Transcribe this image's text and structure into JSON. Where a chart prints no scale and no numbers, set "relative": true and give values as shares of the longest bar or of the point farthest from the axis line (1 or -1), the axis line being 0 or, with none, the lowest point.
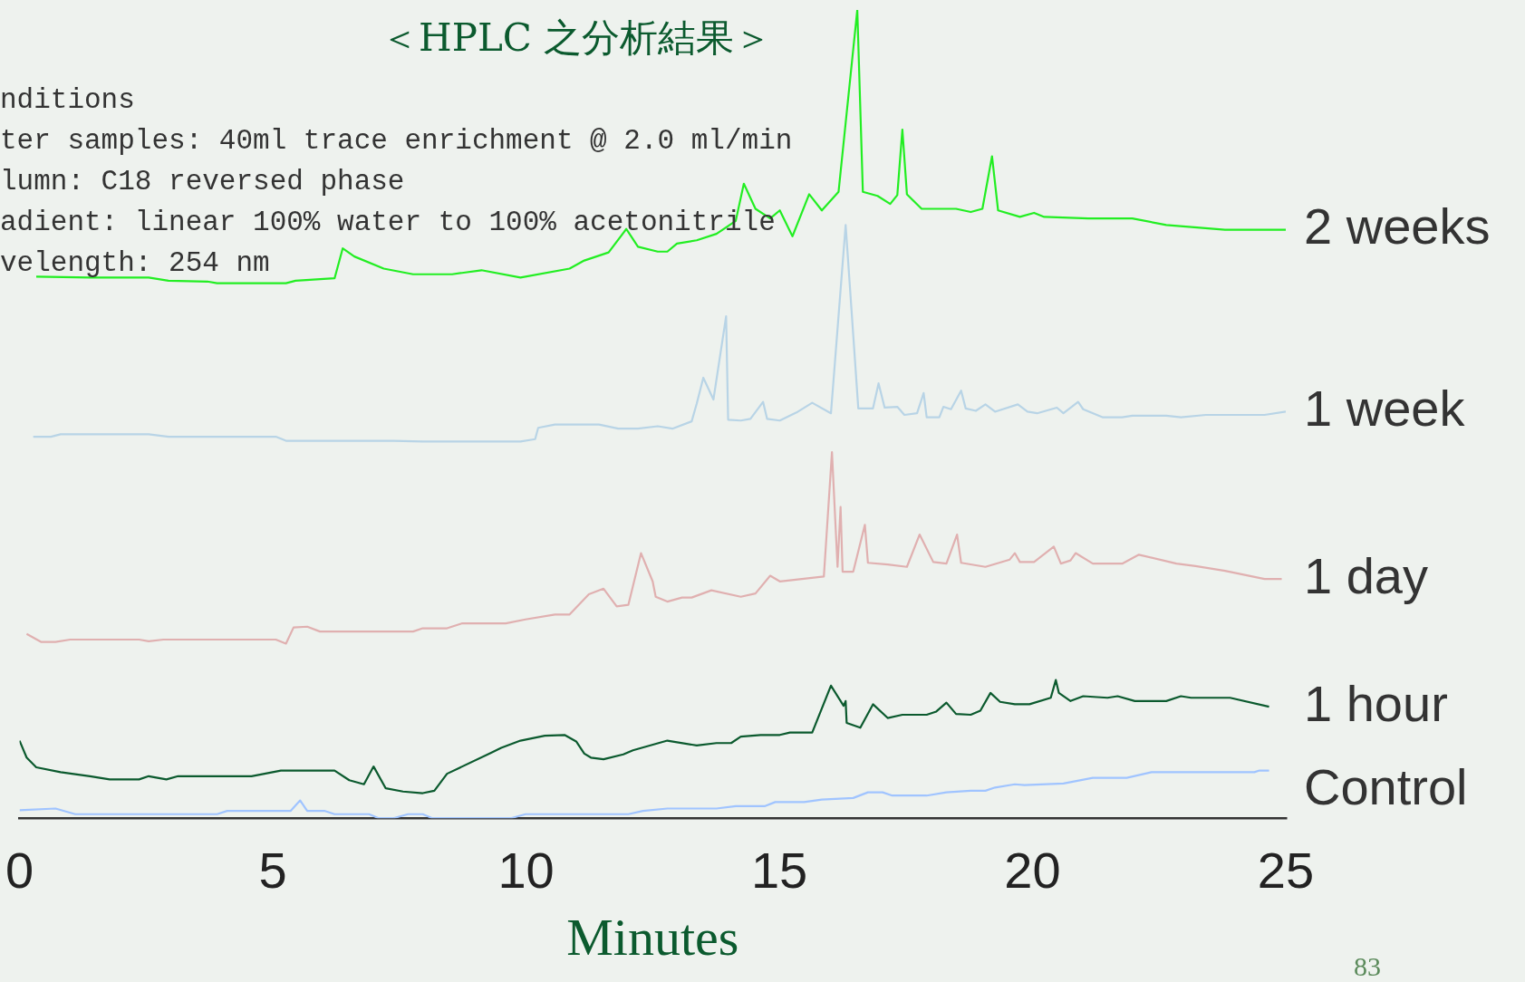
{
  "chart_data": {
    "type": "line",
    "title": "＜HPLC 之分析結果＞",
    "xlabel": "Minutes",
    "relative": true,
    "xlim": [
      0,
      25
    ],
    "xticks": [
      0,
      5,
      10,
      15,
      20,
      25
    ],
    "grid": false,
    "legend": false,
    "marker": "none",
    "annotations": [
      "nditions",
      "ter samples: 40ml trace enrichment @ 2.0 ml/min",
      "lumn: C18 reversed phase",
      "adient: linear 100% water to 100% acetonitrile",
      "velength: 254 nm",
      "83"
    ],
    "series": [
      {
        "name": "2 weeks",
        "color": "#22ee22",
        "x": [
          0.33,
          1.39,
          2.55,
          2.94,
          3.71,
          3.9,
          5.26,
          5.45,
          6.22,
          6.38,
          6.61,
          7.19,
          7.77,
          8.54,
          9.12,
          9.89,
          10.86,
          11.15,
          11.63,
          11.98,
          12.21,
          12.6,
          12.79,
          12.98,
          13.37,
          13.76,
          14.14,
          14.3,
          14.53,
          14.82,
          15.01,
          15.26,
          15.59,
          15.84,
          16.17,
          16.54,
          16.65,
          16.94,
          17.19,
          17.33,
          17.43,
          17.52,
          17.81,
          18.49,
          18.78,
          19.01,
          19.2,
          19.32,
          19.75,
          20.03,
          20.23,
          21.1,
          21.97,
          22.64,
          23.8,
          25.0
        ],
        "values": [
          0.67,
          0.669,
          0.669,
          0.665,
          0.664,
          0.662,
          0.662,
          0.665,
          0.668,
          0.705,
          0.695,
          0.68,
          0.673,
          0.673,
          0.678,
          0.669,
          0.68,
          0.69,
          0.7,
          0.729,
          0.707,
          0.701,
          0.701,
          0.711,
          0.715,
          0.723,
          0.739,
          0.785,
          0.754,
          0.742,
          0.752,
          0.72,
          0.772,
          0.752,
          0.775,
          1.0,
          0.775,
          0.77,
          0.76,
          0.771,
          0.852,
          0.772,
          0.754,
          0.754,
          0.75,
          0.754,
          0.819,
          0.752,
          0.744,
          0.749,
          0.744,
          0.742,
          0.742,
          0.734,
          0.728,
          0.728
        ]
      },
      {
        "name": "1 week",
        "color": "#b8d4e6",
        "x": [
          0.27,
          0.62,
          0.81,
          2.55,
          2.94,
          5.06,
          5.26,
          7.38,
          7.96,
          9.89,
          10.18,
          10.24,
          10.57,
          11.44,
          11.82,
          12.21,
          12.6,
          12.89,
          13.27,
          13.37,
          13.5,
          13.7,
          13.95,
          13.99,
          14.24,
          14.43,
          14.68,
          14.76,
          15.01,
          15.34,
          15.65,
          16.02,
          16.31,
          16.56,
          16.85,
          16.96,
          17.08,
          17.33,
          17.47,
          17.72,
          17.85,
          17.91,
          18.16,
          18.24,
          18.39,
          18.59,
          18.68,
          18.88,
          19.07,
          19.26,
          19.71,
          19.9,
          20.09,
          20.48,
          20.61,
          20.9,
          21.0,
          21.39,
          21.77,
          21.97,
          22.64,
          22.93,
          23.42,
          24.58,
          25.0
        ],
        "values": [
          0.472,
          0.472,
          0.475,
          0.475,
          0.472,
          0.472,
          0.467,
          0.467,
          0.466,
          0.466,
          0.469,
          0.483,
          0.487,
          0.487,
          0.482,
          0.482,
          0.485,
          0.482,
          0.491,
          0.513,
          0.545,
          0.518,
          0.621,
          0.493,
          0.492,
          0.494,
          0.515,
          0.494,
          0.492,
          0.502,
          0.514,
          0.501,
          0.734,
          0.507,
          0.507,
          0.538,
          0.508,
          0.509,
          0.499,
          0.501,
          0.526,
          0.496,
          0.496,
          0.509,
          0.506,
          0.529,
          0.507,
          0.504,
          0.512,
          0.503,
          0.512,
          0.503,
          0.501,
          0.508,
          0.501,
          0.515,
          0.506,
          0.496,
          0.496,
          0.498,
          0.498,
          0.496,
          0.499,
          0.499,
          0.503
        ]
      },
      {
        "name": "1 day",
        "color": "#e0b0b0",
        "x": [
          0.14,
          0.43,
          0.71,
          1.0,
          2.36,
          2.55,
          2.84,
          5.06,
          5.26,
          5.41,
          5.68,
          5.93,
          7.77,
          7.96,
          8.44,
          8.73,
          9.6,
          9.99,
          10.57,
          10.86,
          11.24,
          11.53,
          11.79,
          12.02,
          12.27,
          12.5,
          12.56,
          12.79,
          13.08,
          13.27,
          13.66,
          14.24,
          14.53,
          14.82,
          15.01,
          15.88,
          16.04,
          16.15,
          16.21,
          16.25,
          16.46,
          16.69,
          16.75,
          17.14,
          17.52,
          17.77,
          18.04,
          18.3,
          18.51,
          18.59,
          19.07,
          19.55,
          19.65,
          19.75,
          20.03,
          20.42,
          20.56,
          20.75,
          20.85,
          21.19,
          21.77,
          22.1,
          22.84,
          23.22,
          23.8,
          24.58,
          24.92
        ],
        "values": [
          0.228,
          0.218,
          0.218,
          0.221,
          0.221,
          0.219,
          0.221,
          0.221,
          0.216,
          0.236,
          0.237,
          0.231,
          0.231,
          0.235,
          0.235,
          0.241,
          0.241,
          0.246,
          0.252,
          0.252,
          0.277,
          0.284,
          0.262,
          0.264,
          0.328,
          0.293,
          0.274,
          0.268,
          0.273,
          0.273,
          0.282,
          0.274,
          0.278,
          0.3,
          0.293,
          0.299,
          0.453,
          0.311,
          0.385,
          0.305,
          0.305,
          0.363,
          0.316,
          0.314,
          0.311,
          0.351,
          0.317,
          0.315,
          0.351,
          0.316,
          0.311,
          0.32,
          0.328,
          0.317,
          0.317,
          0.336,
          0.315,
          0.319,
          0.328,
          0.315,
          0.315,
          0.326,
          0.315,
          0.312,
          0.306,
          0.296,
          0.296
        ]
      },
      {
        "name": "1 hour",
        "color": "#0b5a2e",
        "x": [
          0,
          0.14,
          0.33,
          0.81,
          1.39,
          1.78,
          2.36,
          2.55,
          2.9,
          3.13,
          4.58,
          5.16,
          6.22,
          6.51,
          6.8,
          6.99,
          7.23,
          7.57,
          7.96,
          8.19,
          8.44,
          9.31,
          9.51,
          9.89,
          10.37,
          10.76,
          10.99,
          11.15,
          11.28,
          11.53,
          11.92,
          12.11,
          12.79,
          13.37,
          13.76,
          14.05,
          14.24,
          14.63,
          15.01,
          15.21,
          15.65,
          16.02,
          16.27,
          16.31,
          16.33,
          16.6,
          16.85,
          17.14,
          17.43,
          17.91,
          18.1,
          18.3,
          18.49,
          18.78,
          18.97,
          19.17,
          19.36,
          19.65,
          19.94,
          20.36,
          20.46,
          20.52,
          20.75,
          21.0,
          21.48,
          21.68,
          22.02,
          22.64,
          22.93,
          23.13,
          23.9,
          24.67
        ],
        "values": [
          0.096,
          0.075,
          0.063,
          0.057,
          0.052,
          0.048,
          0.048,
          0.052,
          0.048,
          0.052,
          0.052,
          0.059,
          0.059,
          0.047,
          0.042,
          0.064,
          0.037,
          0.033,
          0.031,
          0.034,
          0.055,
          0.081,
          0.087,
          0.096,
          0.102,
          0.103,
          0.095,
          0.08,
          0.075,
          0.073,
          0.079,
          0.084,
          0.096,
          0.09,
          0.093,
          0.093,
          0.101,
          0.103,
          0.103,
          0.106,
          0.106,
          0.164,
          0.139,
          0.145,
          0.118,
          0.112,
          0.141,
          0.124,
          0.128,
          0.128,
          0.132,
          0.143,
          0.129,
          0.128,
          0.133,
          0.155,
          0.144,
          0.141,
          0.141,
          0.149,
          0.171,
          0.155,
          0.145,
          0.151,
          0.149,
          0.151,
          0.145,
          0.145,
          0.151,
          0.149,
          0.149,
          0.138
        ]
      },
      {
        "name": "Control",
        "color": "#a0c4ff",
        "x": [
          0,
          0.71,
          1.1,
          3.9,
          4.1,
          5.35,
          5.54,
          5.68,
          6.03,
          6.22,
          6.9,
          7.09,
          7.38,
          7.67,
          7.96,
          8.15,
          9.7,
          9.99,
          12.02,
          12.31,
          12.79,
          13.76,
          14.14,
          14.72,
          14.92,
          15.49,
          15.84,
          16.46,
          16.75,
          17.04,
          17.23,
          17.91,
          18.3,
          18.78,
          19.07,
          19.26,
          19.65,
          19.84,
          20.61,
          21.19,
          21.86,
          22.35,
          24.38,
          24.48,
          24.67
        ],
        "values": [
          0.01,
          0.012,
          0.005,
          0.005,
          0.009,
          0.009,
          0.022,
          0.009,
          0.009,
          0.005,
          0.005,
          0,
          0,
          0.005,
          0.005,
          0,
          0,
          0.005,
          0.005,
          0.009,
          0.012,
          0.012,
          0.015,
          0.015,
          0.02,
          0.02,
          0.023,
          0.025,
          0.032,
          0.032,
          0.028,
          0.028,
          0.032,
          0.034,
          0.034,
          0.038,
          0.042,
          0.041,
          0.043,
          0.05,
          0.05,
          0.057,
          0.057,
          0.059,
          0.059
        ]
      }
    ]
  }
}
